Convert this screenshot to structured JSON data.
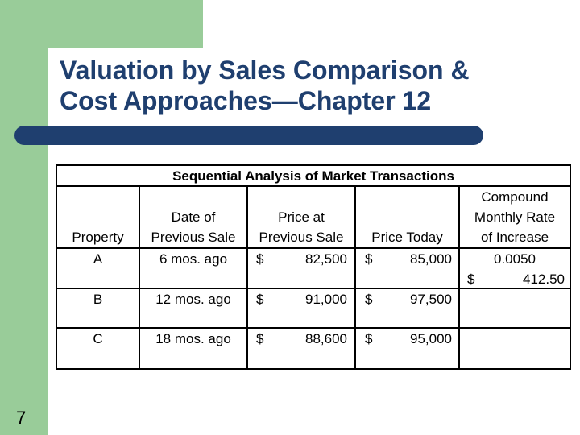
{
  "slide": {
    "title_line1": "Valuation by Sales Comparison &",
    "title_line2": "Cost Approaches—Chapter 12",
    "number": "7"
  },
  "table": {
    "title": "Sequential Analysis of Market Transactions",
    "headers": {
      "property": "Property",
      "date_line1": "Date of",
      "date_line2": "Previous Sale",
      "price_line1": "Price at",
      "price_line2": "Previous Sale",
      "today": "Price Today",
      "rate_line1": "Compound",
      "rate_line2": "Monthly Rate",
      "rate_line3": "of Increase"
    },
    "rows": [
      {
        "property": "A",
        "date": "6 mos. ago",
        "prev_sym": "$",
        "prev_val": "82,500",
        "today_sym": "$",
        "today_val": "85,000",
        "rate": "0.0050",
        "extra_sym": "$",
        "extra_val": "412.50"
      },
      {
        "property": "B",
        "date": "12 mos. ago",
        "prev_sym": "$",
        "prev_val": "91,000",
        "today_sym": "$",
        "today_val": "97,500"
      },
      {
        "property": "C",
        "date": "18 mos. ago",
        "prev_sym": "$",
        "prev_val": "88,600",
        "today_sym": "$",
        "today_val": "95,000"
      }
    ]
  },
  "colors": {
    "accent_green": "#99cc99",
    "title_blue": "#1f3f6f"
  }
}
